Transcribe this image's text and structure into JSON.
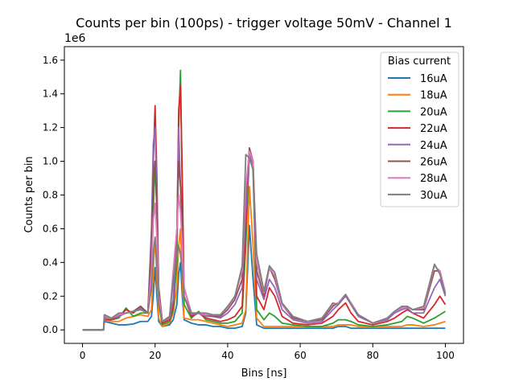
{
  "chart_data": {
    "type": "line",
    "title": "Counts per bin (100ps) - trigger voltage 50mV - Channel 1",
    "xlabel": "Bins [ns]",
    "ylabel": "Counts per bin",
    "y_scale_label": "1e6",
    "xlim": [
      -5,
      105
    ],
    "ylim": [
      -0.08,
      1.68
    ],
    "y_unit_multiplier": 1000000,
    "x_ticks": [
      0,
      20,
      40,
      60,
      80,
      100
    ],
    "x_tick_labels": [
      "0",
      "20",
      "40",
      "60",
      "80",
      "100"
    ],
    "y_ticks": [
      0.0,
      0.2,
      0.4,
      0.6,
      0.8,
      1.0,
      1.2,
      1.4,
      1.6
    ],
    "y_tick_labels": [
      "0.0",
      "0.2",
      "0.4",
      "0.6",
      "0.8",
      "1.0",
      "1.2",
      "1.4",
      "1.6"
    ],
    "grid": false,
    "legend": {
      "title": "Bias current",
      "placement": "top-right"
    },
    "x": [
      0,
      5,
      5.8,
      6,
      8,
      10,
      12,
      14,
      16,
      18,
      19,
      19.5,
      20,
      20.5,
      21,
      22,
      24,
      25,
      26,
      26.5,
      27,
      27.5,
      28,
      30,
      32,
      34,
      36,
      38,
      40,
      42,
      44,
      45,
      46,
      47,
      48,
      50,
      51.5,
      53,
      55,
      58,
      62,
      66,
      69,
      70.5,
      72.5,
      74,
      76,
      80,
      84,
      86,
      88,
      89.5,
      91,
      94,
      97,
      98.5,
      100
    ],
    "series": [
      {
        "name": "16uA",
        "color": "#1f77b4",
        "values": [
          0.0,
          0.0,
          0.0,
          0.05,
          0.04,
          0.03,
          0.03,
          0.035,
          0.05,
          0.05,
          0.08,
          0.2,
          0.37,
          0.2,
          0.05,
          0.02,
          0.03,
          0.06,
          0.15,
          0.33,
          0.4,
          0.2,
          0.06,
          0.04,
          0.03,
          0.03,
          0.02,
          0.02,
          0.01,
          0.01,
          0.02,
          0.1,
          0.62,
          0.3,
          0.03,
          0.01,
          0.01,
          0.01,
          0.01,
          0.01,
          0.01,
          0.01,
          0.01,
          0.02,
          0.02,
          0.01,
          0.01,
          0.01,
          0.01,
          0.01,
          0.01,
          0.01,
          0.01,
          0.01,
          0.01,
          0.01,
          0.01
        ]
      },
      {
        "name": "18uA",
        "color": "#ff7f0e",
        "values": [
          0.0,
          0.0,
          0.0,
          0.06,
          0.05,
          0.05,
          0.07,
          0.08,
          0.09,
          0.08,
          0.12,
          0.35,
          0.55,
          0.3,
          0.07,
          0.02,
          0.04,
          0.1,
          0.25,
          0.5,
          0.6,
          0.3,
          0.07,
          0.06,
          0.06,
          0.05,
          0.04,
          0.03,
          0.02,
          0.03,
          0.04,
          0.12,
          0.85,
          0.5,
          0.07,
          0.02,
          0.02,
          0.02,
          0.02,
          0.02,
          0.02,
          0.02,
          0.02,
          0.03,
          0.03,
          0.03,
          0.02,
          0.02,
          0.02,
          0.02,
          0.02,
          0.03,
          0.03,
          0.02,
          0.03,
          0.04,
          0.05
        ]
      },
      {
        "name": "20uA",
        "color": "#2ca02c",
        "values": [
          0.0,
          0.0,
          0.0,
          0.06,
          0.06,
          0.07,
          0.13,
          0.08,
          0.1,
          0.1,
          0.3,
          0.7,
          1.0,
          0.7,
          0.15,
          0.03,
          0.05,
          0.12,
          0.4,
          1.2,
          1.54,
          0.8,
          0.15,
          0.07,
          0.11,
          0.06,
          0.05,
          0.04,
          0.04,
          0.05,
          0.1,
          0.5,
          1.06,
          0.95,
          0.12,
          0.06,
          0.1,
          0.08,
          0.04,
          0.03,
          0.02,
          0.02,
          0.04,
          0.06,
          0.06,
          0.05,
          0.03,
          0.02,
          0.03,
          0.04,
          0.05,
          0.08,
          0.07,
          0.04,
          0.07,
          0.09,
          0.11
        ]
      },
      {
        "name": "22uA",
        "color": "#d62728",
        "values": [
          0.0,
          0.0,
          0.0,
          0.06,
          0.06,
          0.08,
          0.12,
          0.1,
          0.14,
          0.1,
          0.5,
          1.0,
          1.33,
          0.9,
          0.2,
          0.04,
          0.06,
          0.15,
          0.55,
          1.3,
          1.45,
          0.9,
          0.2,
          0.08,
          0.1,
          0.07,
          0.06,
          0.05,
          0.06,
          0.08,
          0.14,
          0.6,
          1.07,
          1.0,
          0.2,
          0.12,
          0.25,
          0.2,
          0.08,
          0.04,
          0.03,
          0.04,
          0.08,
          0.12,
          0.16,
          0.1,
          0.05,
          0.03,
          0.05,
          0.07,
          0.1,
          0.12,
          0.1,
          0.07,
          0.15,
          0.2,
          0.15
        ]
      },
      {
        "name": "24uA",
        "color": "#9467bd",
        "values": [
          0.0,
          0.0,
          0.0,
          0.07,
          0.07,
          0.08,
          0.1,
          0.11,
          0.13,
          0.1,
          0.6,
          1.1,
          1.2,
          0.8,
          0.25,
          0.05,
          0.07,
          0.18,
          0.55,
          1.2,
          0.85,
          0.6,
          0.2,
          0.09,
          0.1,
          0.08,
          0.08,
          0.07,
          0.1,
          0.15,
          0.25,
          0.7,
          1.05,
          0.95,
          0.3,
          0.18,
          0.3,
          0.25,
          0.12,
          0.06,
          0.04,
          0.05,
          0.12,
          0.15,
          0.2,
          0.15,
          0.08,
          0.04,
          0.06,
          0.1,
          0.12,
          0.13,
          0.1,
          0.1,
          0.25,
          0.3,
          0.2
        ]
      },
      {
        "name": "26uA",
        "color": "#8c564b",
        "values": [
          0.0,
          0.0,
          0.0,
          0.08,
          0.07,
          0.09,
          0.1,
          0.11,
          0.14,
          0.1,
          0.5,
          0.9,
          1.0,
          0.7,
          0.25,
          0.05,
          0.08,
          0.3,
          0.58,
          1.0,
          0.85,
          0.6,
          0.25,
          0.1,
          0.1,
          0.09,
          0.08,
          0.08,
          0.12,
          0.18,
          0.3,
          0.8,
          1.08,
          1.0,
          0.35,
          0.2,
          0.37,
          0.3,
          0.15,
          0.07,
          0.05,
          0.06,
          0.14,
          0.16,
          0.21,
          0.16,
          0.09,
          0.04,
          0.07,
          0.11,
          0.13,
          0.14,
          0.12,
          0.12,
          0.35,
          0.35,
          0.22
        ]
      },
      {
        "name": "28uA",
        "color": "#e377c2",
        "values": [
          0.0,
          0.0,
          0.0,
          0.08,
          0.07,
          0.09,
          0.1,
          0.11,
          0.12,
          0.1,
          0.35,
          0.65,
          0.75,
          0.55,
          0.2,
          0.05,
          0.08,
          0.35,
          0.6,
          0.8,
          0.7,
          0.5,
          0.25,
          0.1,
          0.1,
          0.09,
          0.09,
          0.09,
          0.13,
          0.2,
          0.35,
          0.85,
          1.06,
          1.0,
          0.4,
          0.22,
          0.37,
          0.32,
          0.15,
          0.08,
          0.05,
          0.07,
          0.15,
          0.16,
          0.21,
          0.16,
          0.09,
          0.04,
          0.07,
          0.11,
          0.13,
          0.14,
          0.12,
          0.13,
          0.38,
          0.35,
          0.22
        ]
      },
      {
        "name": "30uA",
        "color": "#7f7f7f",
        "values": [
          0.0,
          0.0,
          0.0,
          0.09,
          0.07,
          0.1,
          0.1,
          0.11,
          0.12,
          0.1,
          0.25,
          0.45,
          0.55,
          0.4,
          0.15,
          0.05,
          0.08,
          0.3,
          0.45,
          0.5,
          0.45,
          0.35,
          0.2,
          0.1,
          0.1,
          0.1,
          0.09,
          0.09,
          0.14,
          0.2,
          0.38,
          1.04,
          1.02,
          0.95,
          0.45,
          0.23,
          0.38,
          0.34,
          0.16,
          0.08,
          0.05,
          0.07,
          0.16,
          0.15,
          0.21,
          0.15,
          0.09,
          0.04,
          0.07,
          0.11,
          0.14,
          0.14,
          0.12,
          0.14,
          0.39,
          0.33,
          0.21
        ]
      }
    ]
  }
}
